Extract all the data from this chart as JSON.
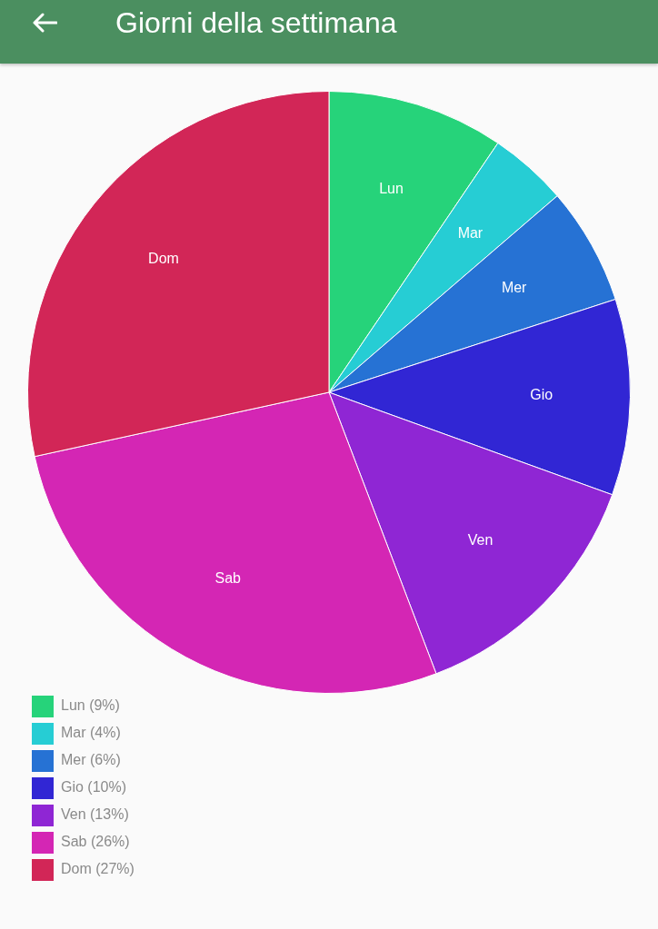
{
  "chart_data": {
    "type": "pie",
    "title": "Giorni della settimana",
    "categories": [
      "Lun",
      "Mar",
      "Mer",
      "Gio",
      "Ven",
      "Sab",
      "Dom"
    ],
    "values": [
      9,
      4,
      6,
      10,
      13,
      26,
      27
    ],
    "value_labels": [
      "(9%)",
      "(4%)",
      "(6%)",
      "(10%)",
      "(13%)",
      "(26%)",
      "(27%)"
    ],
    "colors": [
      "#26d37a",
      "#26cdd4",
      "#2672d4",
      "#3126d4",
      "#8f26d4",
      "#d426b4",
      "#d22657"
    ],
    "legend": "bottom left"
  }
}
